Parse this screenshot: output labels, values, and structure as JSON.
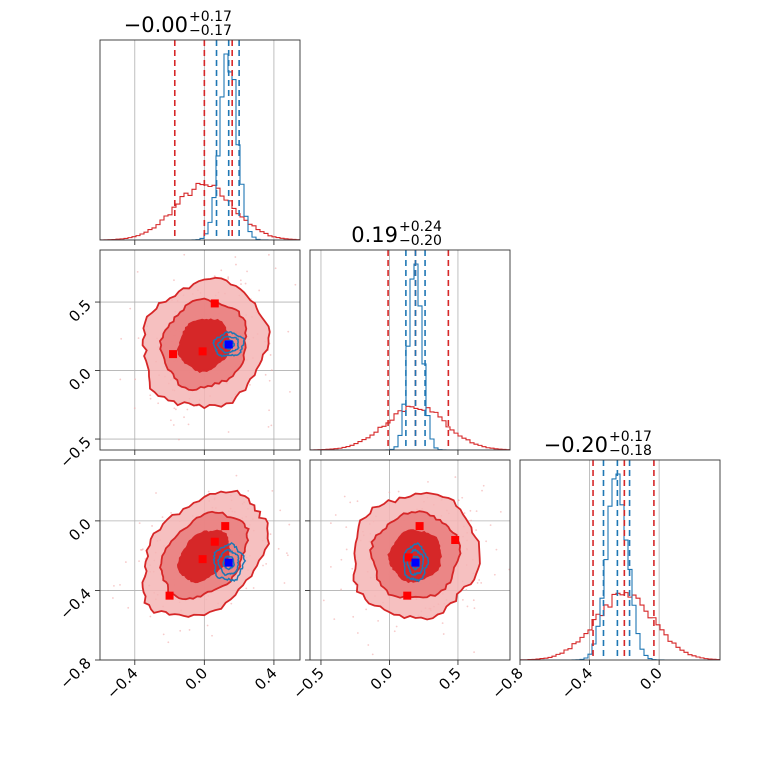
{
  "chart_data": {
    "type": "corner",
    "parameters": [
      "",
      "",
      ""
    ],
    "titles": [
      {
        "center": "−0.00",
        "plus": "+0.17",
        "minus": "−0.17"
      },
      {
        "center": "0.19",
        "plus": "+0.24",
        "minus": "−0.20"
      },
      {
        "center": "−0.20",
        "plus": "+0.17",
        "minus": "−0.18"
      }
    ],
    "ranges": [
      [
        -0.6,
        0.55
      ],
      [
        -0.58,
        0.88
      ],
      [
        -0.8,
        0.35
      ]
    ],
    "ticks": [
      {
        "values": [
          -0.4,
          0.0,
          0.4
        ],
        "labels": [
          "−0.4",
          "0.0",
          "0.4"
        ]
      },
      {
        "values": [
          -0.5,
          0.0,
          0.5
        ],
        "labels": [
          "−0.5",
          "0.0",
          "0.5"
        ]
      },
      {
        "values": [
          -0.8,
          -0.4,
          0.0
        ],
        "labels": [
          "−0.8",
          "−0.4",
          "0.0"
        ]
      }
    ],
    "series": [
      {
        "color": "#d62728",
        "quantiles": [
          [
            -0.17,
            0.0,
            0.16
          ],
          [
            -0.01,
            0.19,
            0.43
          ],
          [
            -0.38,
            -0.2,
            -0.03
          ]
        ],
        "mean": [
          0.0,
          0.19,
          -0.2
        ],
        "sd": [
          0.17,
          0.22,
          0.17
        ],
        "corr": {
          "1,0": 0.1,
          "2,0": 0.35,
          "2,1": 0.05
        }
      },
      {
        "color": "#1f77b4",
        "quantiles": [
          [
            0.07,
            0.14,
            0.2
          ],
          [
            0.12,
            0.19,
            0.26
          ],
          [
            -0.32,
            -0.24,
            -0.17
          ]
        ],
        "mean": [
          0.14,
          0.19,
          -0.24
        ],
        "sd": [
          0.05,
          0.05,
          0.06
        ],
        "corr": {
          "1,0": 0.05,
          "2,0": 0.0,
          "2,1": 0.0
        }
      }
    ],
    "points": {
      "red": [
        {
          "p1": 0,
          "p2": 1,
          "points": [
            [
              -0.18,
              0.12
            ],
            [
              -0.01,
              0.14
            ],
            [
              0.06,
              0.49
            ]
          ]
        },
        {
          "p1": 0,
          "p2": 2,
          "points": [
            [
              0.12,
              -0.03
            ],
            [
              0.06,
              -0.12
            ],
            [
              -0.01,
              -0.22
            ],
            [
              -0.2,
              -0.43
            ]
          ]
        },
        {
          "p1": 1,
          "p2": 2,
          "points": [
            [
              0.22,
              -0.03
            ],
            [
              0.48,
              -0.11
            ],
            [
              0.14,
              -0.21
            ],
            [
              0.13,
              -0.43
            ]
          ]
        }
      ],
      "blue": [
        {
          "p1": 0,
          "p2": 1,
          "points": [
            [
              0.14,
              0.19
            ]
          ]
        },
        {
          "p1": 0,
          "p2": 2,
          "points": [
            [
              0.14,
              -0.24
            ]
          ]
        },
        {
          "p1": 1,
          "p2": 2,
          "points": [
            [
              0.19,
              -0.24
            ]
          ]
        }
      ]
    },
    "grid": true,
    "legend": "none"
  }
}
